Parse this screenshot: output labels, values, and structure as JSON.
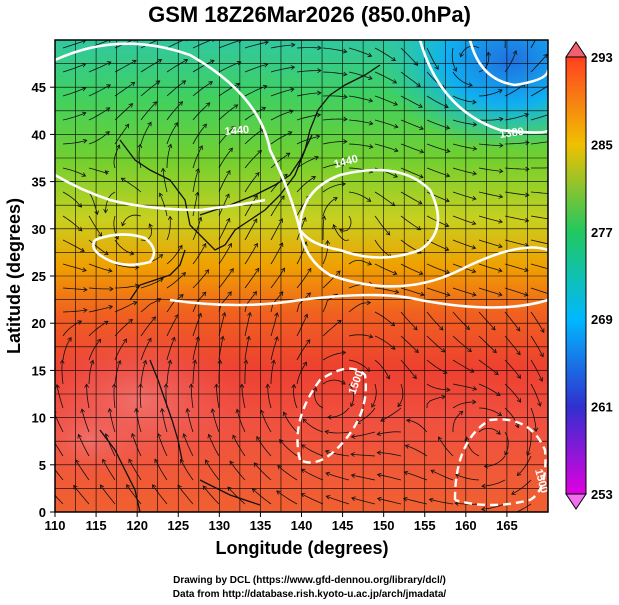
{
  "title": "GSM 18Z26Mar2026 (850.0hPa)",
  "chart_data": {
    "type": "heatmap",
    "title": "GSM 18Z26Mar2026 (850.0hPa)",
    "xlabel": "Longitude (degrees)",
    "ylabel": "Latitude  (degrees)",
    "xlim": [
      110,
      170
    ],
    "ylim": [
      0,
      50
    ],
    "x_ticks": [
      110,
      115,
      120,
      125,
      130,
      135,
      140,
      145,
      150,
      155,
      160,
      165
    ],
    "y_ticks": [
      0,
      5,
      10,
      15,
      20,
      25,
      30,
      35,
      40,
      45
    ],
    "grid": true,
    "colorbar": {
      "ticks": [
        253,
        261,
        269,
        277,
        285,
        293
      ],
      "range": [
        253,
        293
      ],
      "colors": [
        "#e000e0",
        "#3030d0",
        "#00b8ff",
        "#20c860",
        "#f0c000",
        "#ff4020"
      ]
    },
    "temperature_field": {
      "description_levels_by_latitude": [
        {
          "lat": 0,
          "value": 289
        },
        {
          "lat": 10,
          "value": 290
        },
        {
          "lat": 20,
          "value": 288
        },
        {
          "lat": 27,
          "value": 284
        },
        {
          "lat": 35,
          "value": 280
        },
        {
          "lat": 42,
          "value": 276
        },
        {
          "lat": 50,
          "value": 270
        }
      ],
      "cold_center": {
        "lon": 163,
        "lat": 47,
        "value": 265
      }
    },
    "contour_labels": [
      "1380",
      "1440",
      "1500",
      "1500",
      "1440"
    ],
    "circulation_centers": [
      {
        "type": "high",
        "lon": 145,
        "lat": 32
      },
      {
        "type": "low",
        "lon": 161,
        "lat": 47
      },
      {
        "type": "low",
        "lon": 121,
        "lat": 29
      },
      {
        "type": "eddy",
        "lon": 143,
        "lat": 12
      },
      {
        "type": "eddy",
        "lon": 163,
        "lat": 7
      }
    ]
  },
  "credits": {
    "line1": "Drawing by DCL (https://www.gfd-dennou.org/library/dcl/)",
    "line2": "Data from http://database.rish.kyoto-u.ac.jp/arch/jmadata/"
  }
}
